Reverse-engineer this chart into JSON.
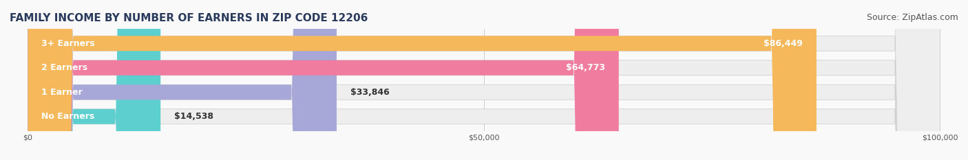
{
  "title": "FAMILY INCOME BY NUMBER OF EARNERS IN ZIP CODE 12206",
  "source": "Source: ZipAtlas.com",
  "categories": [
    "No Earners",
    "1 Earner",
    "2 Earners",
    "3+ Earners"
  ],
  "values": [
    14538,
    33846,
    64773,
    86449
  ],
  "labels": [
    "$14,538",
    "$33,846",
    "$64,773",
    "$86,449"
  ],
  "bar_colors": [
    "#5ecfcf",
    "#a8a8d8",
    "#f07ca0",
    "#f5b85a"
  ],
  "bar_bg_color": "#eeeeee",
  "xmax": 100000,
  "xticks": [
    0,
    50000,
    100000
  ],
  "xtick_labels": [
    "$0",
    "$50,000",
    "$100,000"
  ],
  "title_color": "#2a3a5c",
  "source_color": "#555555",
  "title_fontsize": 11,
  "source_fontsize": 9,
  "label_fontsize": 9,
  "category_fontsize": 9,
  "bg_color": "#f9f9f9",
  "bar_height": 0.62,
  "label_inside_threshold": 40000
}
